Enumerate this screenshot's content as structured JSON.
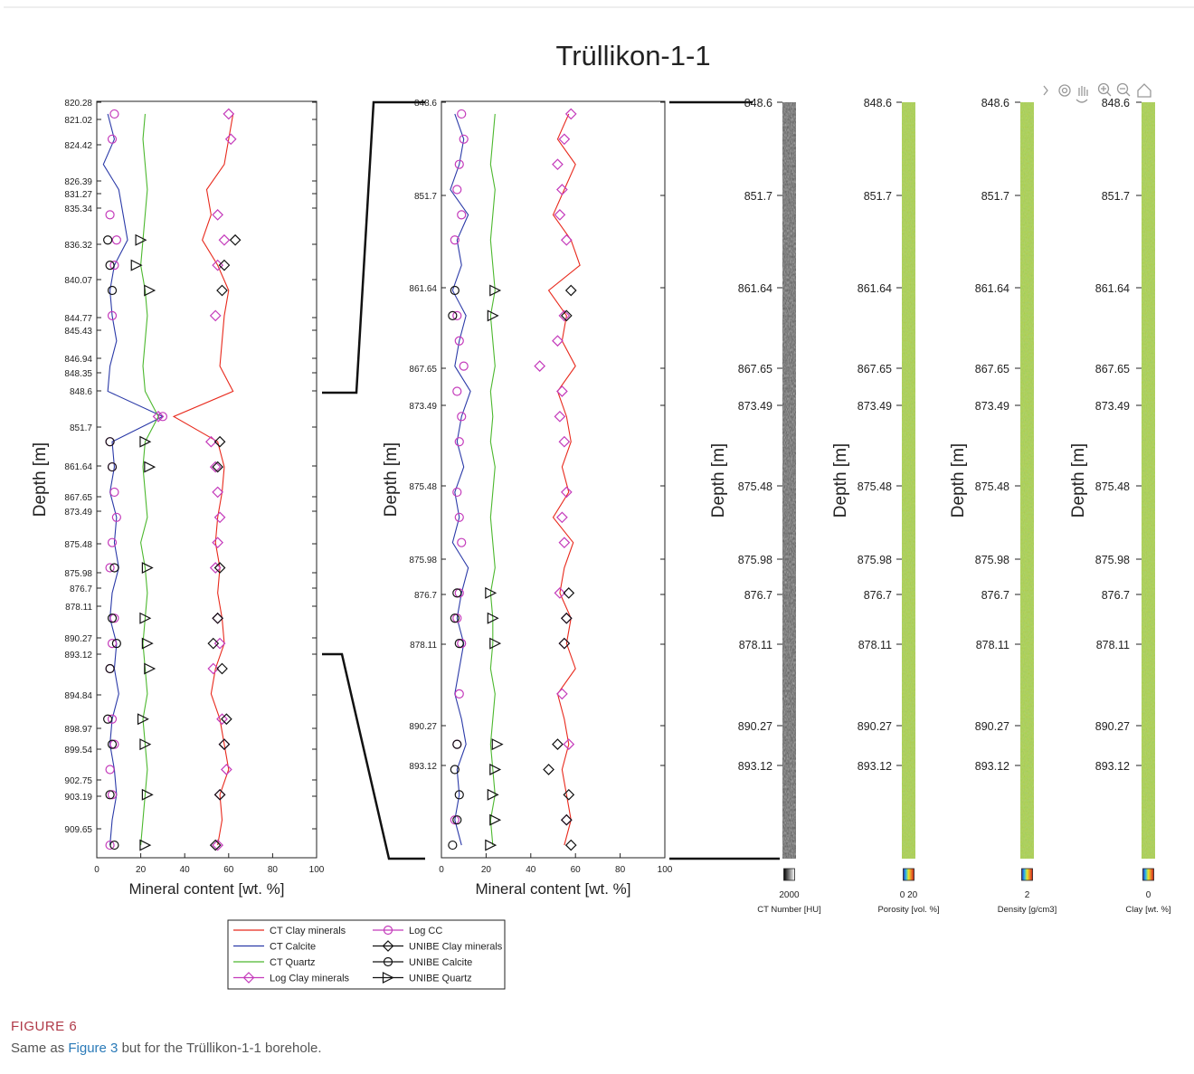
{
  "title": "Trüllikon-1-1",
  "chart_data": [
    {
      "type": "line",
      "y_label": "Depth [m]",
      "x_label": "Mineral content [wt. %]",
      "depth_labels": [
        "820.28",
        "821.02",
        "824.42",
        "826.39",
        "831.27",
        "835.34",
        "836.32",
        "840.07",
        "844.77",
        "845.43",
        "846.94",
        "848.35",
        "848.6",
        "851.7",
        "861.64",
        "867.65",
        "873.49",
        "875.48",
        "875.98",
        "876.7",
        "878.11",
        "890.27",
        "893.12",
        "894.84",
        "898.97",
        "899.54",
        "902.75",
        "903.19",
        "909.65"
      ],
      "xlim": [
        0,
        100
      ],
      "xticks": [
        0,
        20,
        40,
        60,
        80,
        100
      ],
      "series": [
        {
          "values": [
            62,
            60,
            58,
            50,
            52,
            48,
            55,
            60,
            58,
            57,
            56,
            62,
            35,
            55,
            58,
            57,
            55,
            54,
            56,
            55,
            57,
            58,
            54,
            52,
            56,
            58,
            60,
            56,
            57,
            55
          ]
        },
        {
          "values": [
            5,
            8,
            3,
            10,
            12,
            14,
            8,
            6,
            7,
            9,
            6,
            5,
            30,
            7,
            8,
            6,
            9,
            8,
            10,
            7,
            6,
            9,
            8,
            10,
            7,
            6,
            8,
            9,
            7,
            6
          ]
        },
        {
          "values": [
            22,
            21,
            22,
            23,
            22,
            21,
            20,
            22,
            23,
            22,
            21,
            22,
            28,
            22,
            21,
            22,
            23,
            20,
            22,
            23,
            22,
            21,
            22,
            23,
            21,
            22,
            23,
            22,
            21,
            20
          ]
        },
        {
          "values": [
            60,
            61,
            null,
            null,
            55,
            58,
            55,
            null,
            54,
            null,
            null,
            null,
            28,
            52,
            54,
            55,
            56,
            55,
            54,
            null,
            55,
            56,
            53,
            null,
            57,
            58,
            59,
            56,
            null,
            55
          ]
        },
        {
          "values": [
            8,
            7,
            null,
            null,
            6,
            9,
            8,
            null,
            7,
            null,
            null,
            null,
            30,
            6,
            7,
            8,
            9,
            7,
            6,
            null,
            8,
            7,
            6,
            null,
            7,
            8,
            6,
            7,
            null,
            6
          ]
        },
        {
          "values": [
            null,
            null,
            null,
            null,
            null,
            63,
            58,
            57,
            null,
            null,
            null,
            null,
            null,
            56,
            55,
            null,
            null,
            null,
            56,
            null,
            55,
            53,
            57,
            null,
            59,
            58,
            null,
            56,
            null,
            54
          ]
        },
        {
          "values": [
            null,
            null,
            null,
            null,
            null,
            5,
            6,
            7,
            null,
            null,
            null,
            null,
            null,
            6,
            7,
            null,
            null,
            null,
            8,
            null,
            7,
            9,
            6,
            null,
            5,
            7,
            null,
            6,
            null,
            8
          ]
        },
        {
          "values": [
            null,
            null,
            null,
            null,
            null,
            20,
            18,
            24,
            null,
            null,
            null,
            null,
            null,
            22,
            24,
            null,
            null,
            null,
            23,
            null,
            22,
            23,
            24,
            null,
            21,
            22,
            null,
            23,
            null,
            22
          ]
        }
      ]
    },
    {
      "type": "line",
      "y_label": "Depth [m]",
      "x_label": "Mineral content [wt. %]",
      "depth_labels": [
        "848.6",
        "851.7",
        "861.64",
        "867.65",
        "873.49",
        "875.48",
        "875.98",
        "876.7",
        "878.11",
        "890.27",
        "893.12"
      ],
      "xlim": [
        0,
        100
      ],
      "xticks": [
        0,
        20,
        40,
        60,
        80,
        100
      ],
      "series": [
        {
          "values": [
            57,
            52,
            60,
            55,
            50,
            58,
            62,
            48,
            56,
            54,
            60,
            52,
            56,
            58,
            54,
            57,
            50,
            59,
            55,
            53,
            58,
            56,
            60,
            52,
            55,
            57,
            54,
            56,
            58,
            55
          ]
        },
        {
          "values": [
            6,
            10,
            8,
            4,
            12,
            7,
            9,
            5,
            11,
            8,
            6,
            13,
            9,
            7,
            10,
            6,
            8,
            5,
            12,
            9,
            7,
            10,
            8,
            6,
            9,
            11,
            7,
            8,
            6,
            9
          ]
        },
        {
          "values": [
            24,
            23,
            22,
            24,
            23,
            22,
            23,
            24,
            22,
            23,
            24,
            22,
            23,
            22,
            24,
            23,
            22,
            23,
            24,
            22,
            23,
            23,
            22,
            24,
            23,
            22,
            23,
            24,
            22,
            23
          ]
        },
        {
          "values": [
            58,
            55,
            52,
            54,
            53,
            56,
            null,
            null,
            55,
            52,
            44,
            54,
            53,
            55,
            null,
            56,
            54,
            55,
            null,
            53,
            56,
            55,
            null,
            54,
            null,
            57,
            null,
            null,
            56,
            null
          ]
        },
        {
          "values": [
            9,
            10,
            8,
            7,
            9,
            6,
            null,
            null,
            7,
            8,
            10,
            7,
            9,
            8,
            null,
            7,
            8,
            9,
            null,
            8,
            7,
            9,
            null,
            8,
            null,
            7,
            null,
            null,
            6,
            null
          ]
        },
        {
          "values": [
            null,
            null,
            null,
            null,
            null,
            null,
            null,
            58,
            56,
            null,
            null,
            null,
            null,
            null,
            null,
            null,
            null,
            null,
            null,
            57,
            56,
            55,
            null,
            null,
            null,
            52,
            48,
            57,
            56,
            58
          ]
        },
        {
          "values": [
            null,
            null,
            null,
            null,
            null,
            null,
            null,
            6,
            5,
            null,
            null,
            null,
            null,
            null,
            null,
            null,
            null,
            null,
            null,
            7,
            6,
            8,
            null,
            null,
            null,
            7,
            6,
            8,
            7,
            5
          ]
        },
        {
          "values": [
            null,
            null,
            null,
            null,
            null,
            null,
            null,
            24,
            23,
            null,
            null,
            null,
            null,
            null,
            null,
            null,
            null,
            null,
            null,
            22,
            23,
            24,
            null,
            null,
            null,
            25,
            24,
            23,
            24,
            22
          ]
        }
      ]
    }
  ],
  "legend": [
    {
      "name": "CT Clay minerals",
      "color": "#e8291c",
      "marker": "none"
    },
    {
      "name": "CT Calcite",
      "color": "#2b3aa8",
      "marker": "none"
    },
    {
      "name": "CT Quartz",
      "color": "#4cb82e",
      "marker": "none"
    },
    {
      "name": "Log Clay minerals",
      "color": "#c43bbb",
      "marker": "diamond"
    },
    {
      "name": "Log CC",
      "color": "#c43bbb",
      "marker": "circle"
    },
    {
      "name": "UNIBE Clay minerals",
      "color": "#111111",
      "marker": "diamond"
    },
    {
      "name": "UNIBE Calcite",
      "color": "#111111",
      "marker": "circle"
    },
    {
      "name": "UNIBE Quartz",
      "color": "#111111",
      "marker": "triangle"
    }
  ],
  "image_logs": [
    {
      "colorbar_label": "2000",
      "title": "CT Number [HU]",
      "colormap": "gray"
    },
    {
      "colorbar_label": "0 20",
      "title": "Porosity [vol. %]",
      "colormap": "rainbow"
    },
    {
      "colorbar_label": "2",
      "title": "Density [g/cm3]",
      "colormap": "rainbow"
    },
    {
      "colorbar_label": "0",
      "title": "Clay [wt. %]",
      "colormap": "rainbow"
    }
  ],
  "caption": {
    "label": "FIGURE 6",
    "text": [
      "Same as ",
      "Figure 3",
      " but for the Trüllikon-1-1 borehole."
    ]
  }
}
